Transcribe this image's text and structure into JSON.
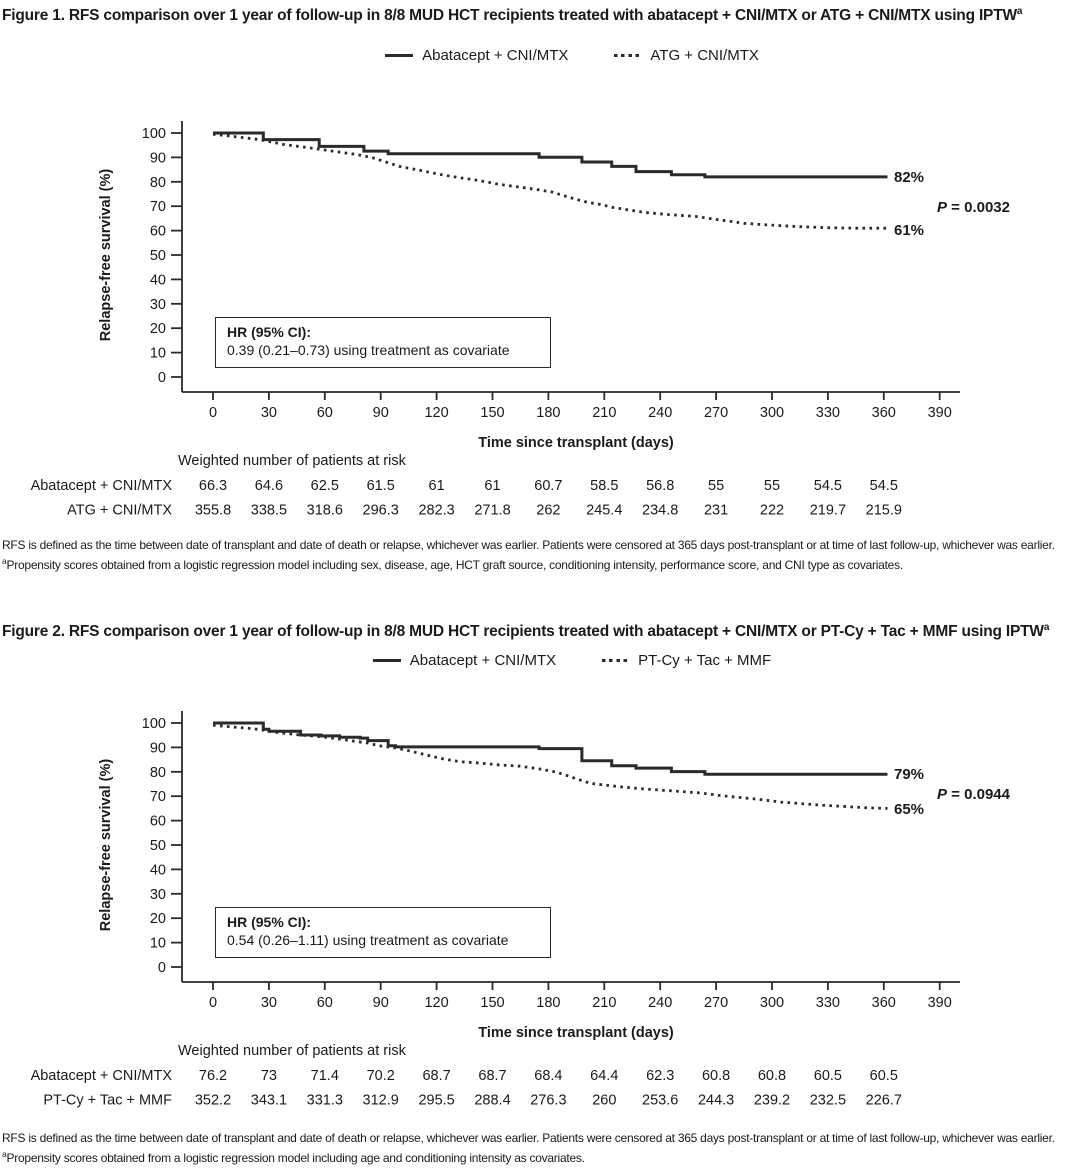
{
  "page": {
    "background_color": "#ffffff",
    "text_color": "#1a1a1a",
    "line_color": "#2a2a2a"
  },
  "chart_data": [
    {
      "type": "line",
      "title": "Figure 1. RFS comparison over 1 year of follow-up in 8/8 MUD HCT recipients treated with abatacept + CNI/MTX or ATG + CNI/MTX using IPTW",
      "title_superscript": "a",
      "xlabel": "Time since transplant (days)",
      "ylabel": "Relapse-free survival (%)",
      "xlim": [
        0,
        390
      ],
      "ylim": [
        0,
        100
      ],
      "grid": false,
      "legend_position": "top-center",
      "xticks": [
        0,
        30,
        60,
        90,
        120,
        150,
        180,
        210,
        240,
        270,
        300,
        330,
        360,
        390
      ],
      "yticks": [
        0,
        10,
        20,
        30,
        40,
        50,
        60,
        70,
        80,
        90,
        100
      ],
      "series": [
        {
          "name": "Abatacept + CNI/MTX",
          "line_style": "solid",
          "color": "#2a2a2a",
          "interpolation": "step-after",
          "end_label": "82%",
          "points": [
            [
              0,
              100
            ],
            [
              27,
              97.3
            ],
            [
              57,
              94.5
            ],
            [
              81,
              92.6
            ],
            [
              94,
              91.5
            ],
            [
              175,
              90.1
            ],
            [
              198,
              88.1
            ],
            [
              214,
              86.3
            ],
            [
              227,
              84.2
            ],
            [
              246,
              82.9
            ],
            [
              264,
              82
            ],
            [
              362,
              82
            ]
          ]
        },
        {
          "name": "ATG + CNI/MTX",
          "line_style": "dotted",
          "color": "#2a2a2a",
          "interpolation": "linear",
          "end_label": "61%",
          "points": [
            [
              0,
              99.5
            ],
            [
              12,
              98.5
            ],
            [
              25,
              97.3
            ],
            [
              38,
              95.3
            ],
            [
              51,
              94
            ],
            [
              64,
              92.6
            ],
            [
              77,
              91.2
            ],
            [
              85,
              90
            ],
            [
              90,
              88.8
            ],
            [
              100,
              86.3
            ],
            [
              111,
              84.7
            ],
            [
              122,
              83
            ],
            [
              133,
              81.6
            ],
            [
              143,
              80.5
            ],
            [
              154,
              78.9
            ],
            [
              165,
              77.8
            ],
            [
              175,
              76.7
            ],
            [
              182,
              75.8
            ],
            [
              188,
              74.4
            ],
            [
              194,
              73
            ],
            [
              201,
              71.6
            ],
            [
              208,
              70.7
            ],
            [
              214,
              69.6
            ],
            [
              223,
              68.5
            ],
            [
              231,
              67.5
            ],
            [
              244,
              66.6
            ],
            [
              259,
              65.8
            ],
            [
              272,
              64.4
            ],
            [
              285,
              63
            ],
            [
              294,
              62.5
            ],
            [
              305,
              62
            ],
            [
              315,
              61.6
            ],
            [
              330,
              61.2
            ],
            [
              345,
              61
            ],
            [
              362,
              61
            ]
          ]
        }
      ],
      "p_value": {
        "prefix": "P",
        "rest": " = 0.0032"
      },
      "hr_box": {
        "line1": "HR (95% CI):",
        "line2": "0.39 (0.21–0.73) using treatment as covariate"
      },
      "risk_table": {
        "header": "Weighted number of patients at risk",
        "times": [
          0,
          30,
          60,
          90,
          120,
          150,
          180,
          210,
          240,
          270,
          300,
          330,
          360
        ],
        "rows": [
          {
            "label": "Abatacept + CNI/MTX",
            "values": [
              "66.3",
              "64.6",
              "62.5",
              "61.5",
              "61",
              "61",
              "60.7",
              "58.5",
              "56.8",
              "55",
              "55",
              "54.5",
              "54.5"
            ]
          },
          {
            "label": "ATG + CNI/MTX",
            "values": [
              "355.8",
              "338.5",
              "318.6",
              "296.3",
              "282.3",
              "271.8",
              "262",
              "245.4",
              "234.8",
              "231",
              "222",
              "219.7",
              "215.9"
            ]
          }
        ]
      },
      "footnotes": [
        {
          "sup": "",
          "text": "RFS is defined as the time between date of transplant and date of death or relapse, whichever was earlier. Patients were censored at 365 days post-transplant or at time of last follow-up, whichever was earlier."
        },
        {
          "sup": "a",
          "text": "Propensity scores obtained from a logistic regression model including sex, disease, age, HCT graft source, conditioning intensity, performance score, and CNI type as covariates."
        }
      ]
    },
    {
      "type": "line",
      "title": "Figure 2. RFS comparison over 1 year of follow-up in 8/8 MUD HCT recipients treated with abatacept + CNI/MTX or PT-Cy + Tac + MMF using IPTW",
      "title_superscript": "a",
      "xlabel": "Time since transplant (days)",
      "ylabel": "Relapse-free survival (%)",
      "xlim": [
        0,
        390
      ],
      "ylim": [
        0,
        100
      ],
      "grid": false,
      "legend_position": "top-center",
      "xticks": [
        0,
        30,
        60,
        90,
        120,
        150,
        180,
        210,
        240,
        270,
        300,
        330,
        360,
        390
      ],
      "yticks": [
        0,
        10,
        20,
        30,
        40,
        50,
        60,
        70,
        80,
        90,
        100
      ],
      "series": [
        {
          "name": "Abatacept + CNI/MTX",
          "line_style": "solid",
          "color": "#2a2a2a",
          "interpolation": "step-after",
          "end_label": "79%",
          "points": [
            [
              0,
              100
            ],
            [
              27,
              97.4
            ],
            [
              30,
              96.6
            ],
            [
              47,
              95.1
            ],
            [
              58,
              94.7
            ],
            [
              68,
              94.2
            ],
            [
              79,
              93.8
            ],
            [
              83,
              92.8
            ],
            [
              94,
              90.7
            ],
            [
              98,
              90.2
            ],
            [
              175,
              89.5
            ],
            [
              198,
              84.5
            ],
            [
              214,
              82.5
            ],
            [
              227,
              81.5
            ],
            [
              246,
              80.1
            ],
            [
              264,
              79
            ],
            [
              362,
              79
            ]
          ]
        },
        {
          "name": "PT-Cy + Tac + MMF",
          "line_style": "dotted",
          "color": "#2a2a2a",
          "interpolation": "linear",
          "end_label": "65%",
          "points": [
            [
              0,
              99.1
            ],
            [
              10,
              98.4
            ],
            [
              21,
              97.7
            ],
            [
              27,
              97.1
            ],
            [
              32,
              96.4
            ],
            [
              40,
              95.6
            ],
            [
              47,
              95.1
            ],
            [
              58,
              94.4
            ],
            [
              68,
              93.4
            ],
            [
              76,
              92.5
            ],
            [
              83,
              91.8
            ],
            [
              89,
              90.7
            ],
            [
              98,
              89.8
            ],
            [
              106,
              88.5
            ],
            [
              115,
              86.8
            ],
            [
              124,
              85.2
            ],
            [
              133,
              84.1
            ],
            [
              143,
              83.6
            ],
            [
              154,
              82.8
            ],
            [
              165,
              82.3
            ],
            [
              175,
              81.2
            ],
            [
              184,
              79.9
            ],
            [
              190,
              78.5
            ],
            [
              197,
              76.6
            ],
            [
              203,
              75.2
            ],
            [
              210,
              74.6
            ],
            [
              218,
              73.9
            ],
            [
              231,
              73
            ],
            [
              246,
              72.2
            ],
            [
              262,
              71.3
            ],
            [
              272,
              70.3
            ],
            [
              285,
              69.3
            ],
            [
              294,
              68.6
            ],
            [
              305,
              67.6
            ],
            [
              315,
              67
            ],
            [
              325,
              66.4
            ],
            [
              338,
              65.8
            ],
            [
              350,
              65.3
            ],
            [
              362,
              65
            ]
          ]
        }
      ],
      "p_value": {
        "prefix": "P",
        "rest": " = 0.0944"
      },
      "hr_box": {
        "line1": "HR (95% CI):",
        "line2": "0.54 (0.26–1.11) using treatment as covariate"
      },
      "risk_table": {
        "header": "Weighted number of patients at risk",
        "times": [
          0,
          30,
          60,
          90,
          120,
          150,
          180,
          210,
          240,
          270,
          300,
          330,
          360
        ],
        "rows": [
          {
            "label": "Abatacept + CNI/MTX",
            "values": [
              "76.2",
              "73",
              "71.4",
              "70.2",
              "68.7",
              "68.7",
              "68.4",
              "64.4",
              "62.3",
              "60.8",
              "60.8",
              "60.5",
              "60.5"
            ]
          },
          {
            "label": "PT-Cy + Tac + MMF",
            "values": [
              "352.2",
              "343.1",
              "331.3",
              "312.9",
              "295.5",
              "288.4",
              "276.3",
              "260",
              "253.6",
              "244.3",
              "239.2",
              "232.5",
              "226.7"
            ]
          }
        ]
      },
      "footnotes": [
        {
          "sup": "",
          "text": "RFS is defined as the time between date of transplant and date of death or relapse, whichever was earlier. Patients were censored at 365 days post-transplant or at time of last follow-up, whichever was earlier."
        },
        {
          "sup": "a",
          "text": "Propensity scores obtained from a logistic regression model including age and conditioning intensity as covariates."
        }
      ]
    }
  ]
}
